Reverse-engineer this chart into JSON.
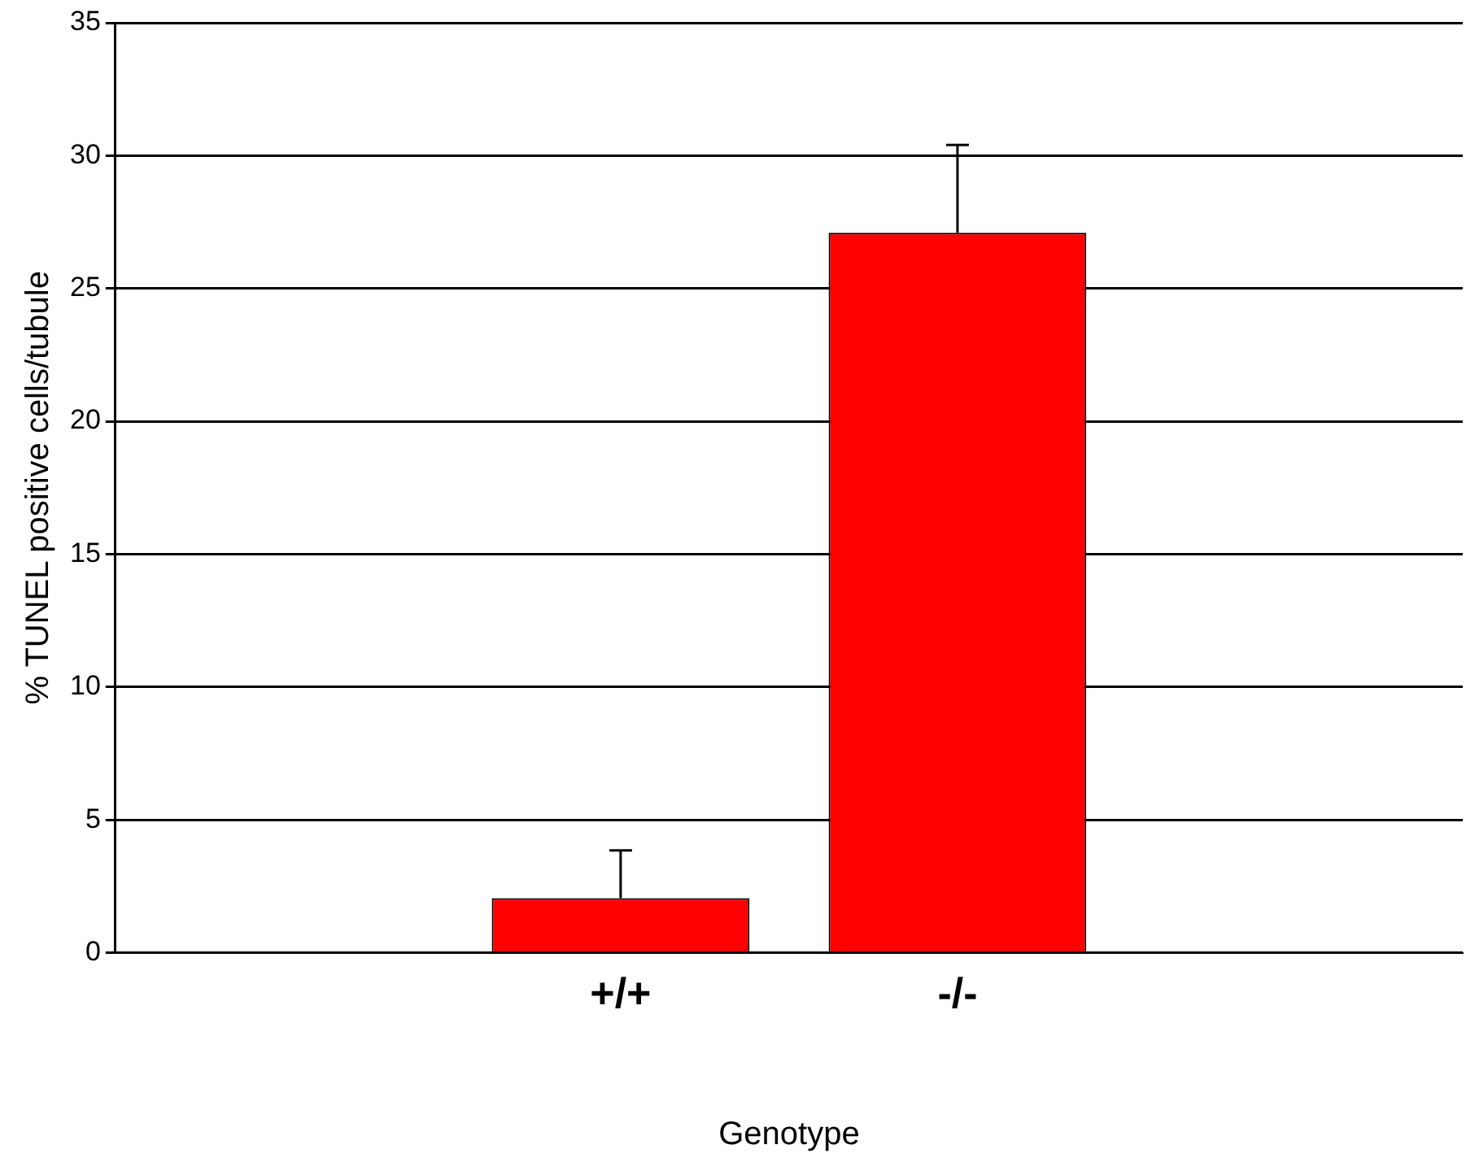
{
  "chart_data": {
    "type": "bar",
    "xlabel": "Genotype",
    "ylabel": "% TUNEL positive cells/tubule",
    "categories": [
      null,
      "+/+",
      "-/-",
      null
    ],
    "values": [
      null,
      2.05,
      27.1,
      null
    ],
    "errors": [
      null,
      1.8,
      3.3,
      null
    ],
    "color": "#ff0000",
    "ylim": [
      0,
      35
    ],
    "yticks": [
      0,
      5,
      10,
      15,
      20,
      25,
      30,
      35
    ],
    "grid": "y",
    "legend": false
  }
}
